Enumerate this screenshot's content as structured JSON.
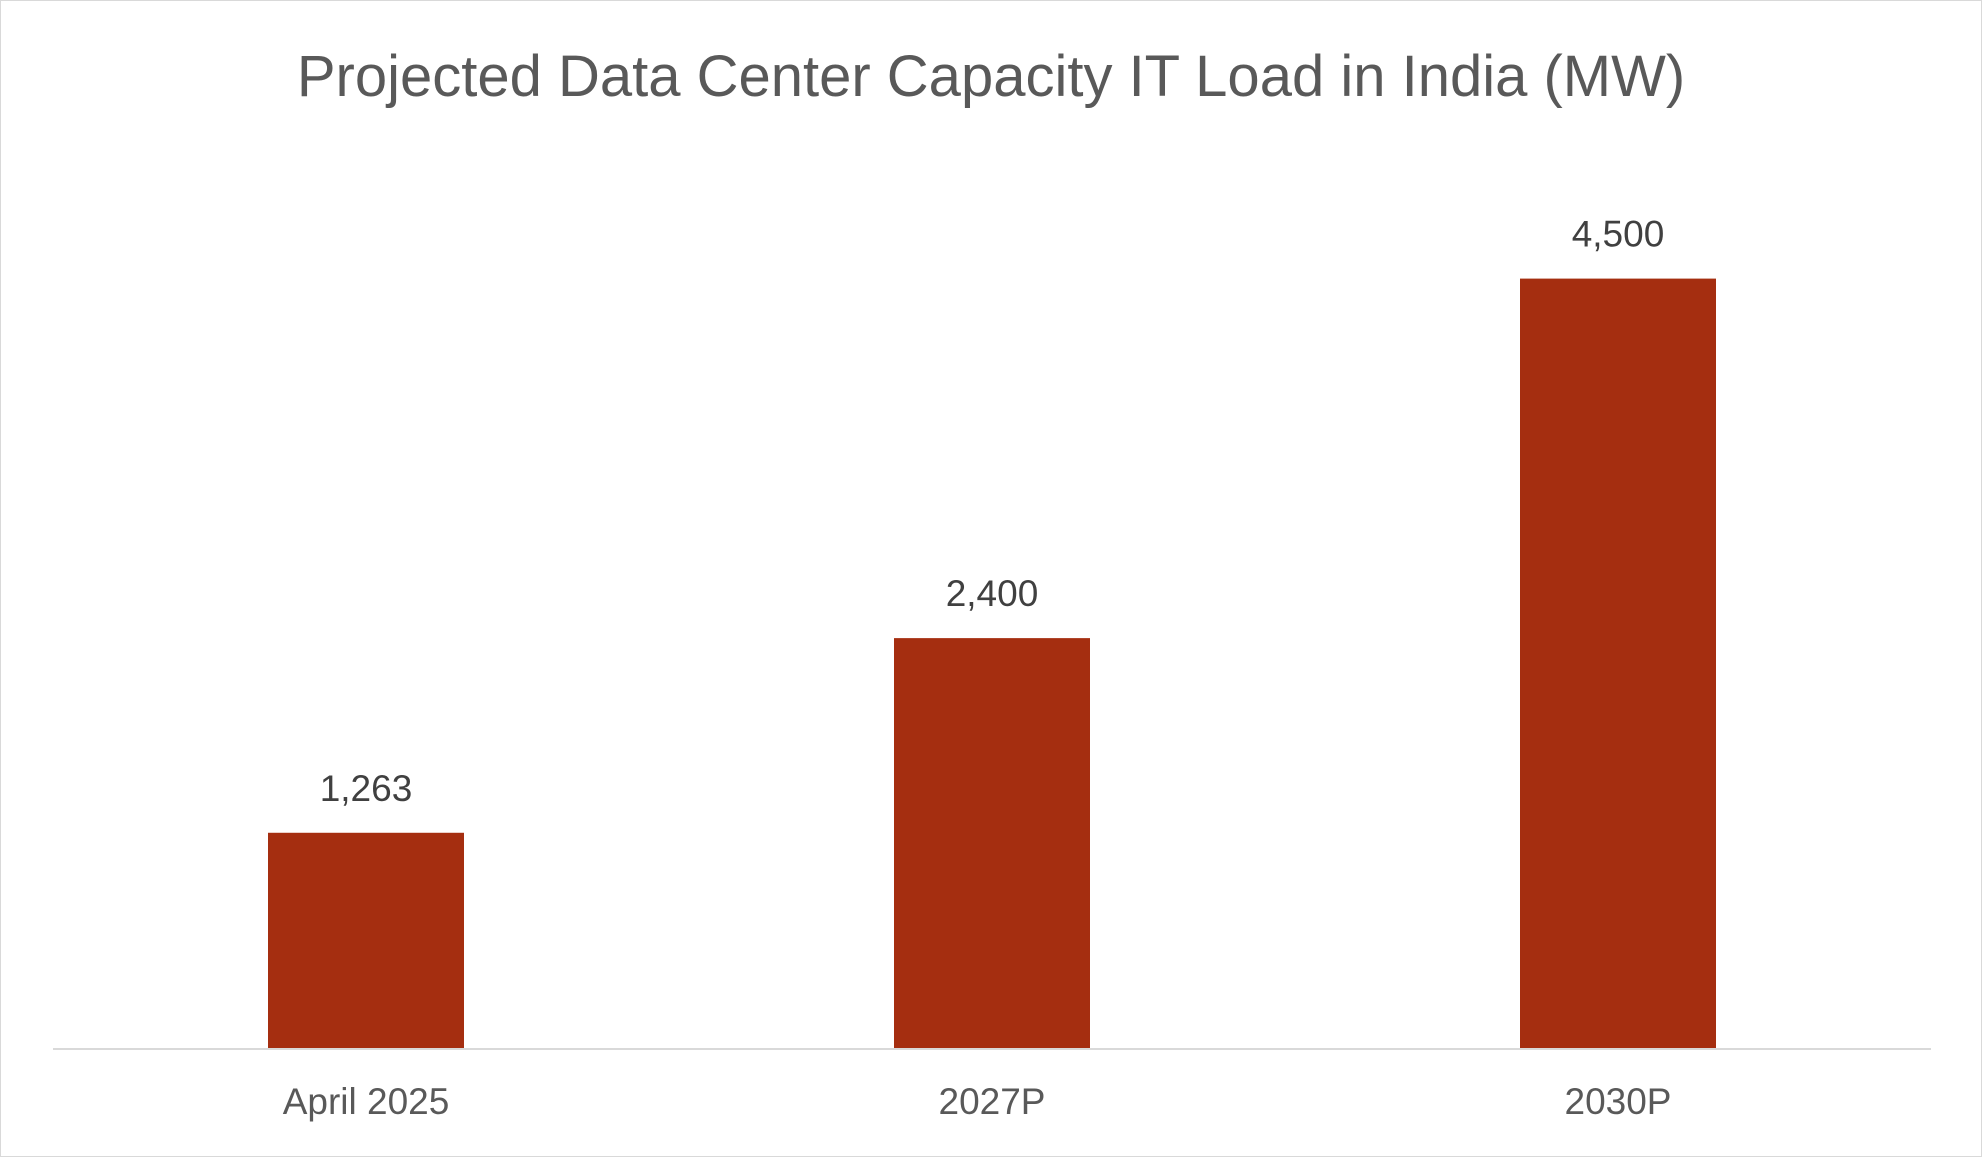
{
  "chart_data": {
    "type": "bar",
    "title": "Projected Data Center Capacity IT Load in India (MW)",
    "categories": [
      "April 2025",
      "2027P",
      "2030P"
    ],
    "values": [
      1263,
      2400,
      4500
    ],
    "data_labels": [
      "1,263",
      "2,400",
      "4,500"
    ],
    "xlabel": "",
    "ylabel": "",
    "ylim": [
      0,
      5000
    ],
    "grid": false,
    "legend": "none",
    "bar_color": "#A52E10",
    "axis_color": "#D9D9D9",
    "text_color": "#595959"
  }
}
